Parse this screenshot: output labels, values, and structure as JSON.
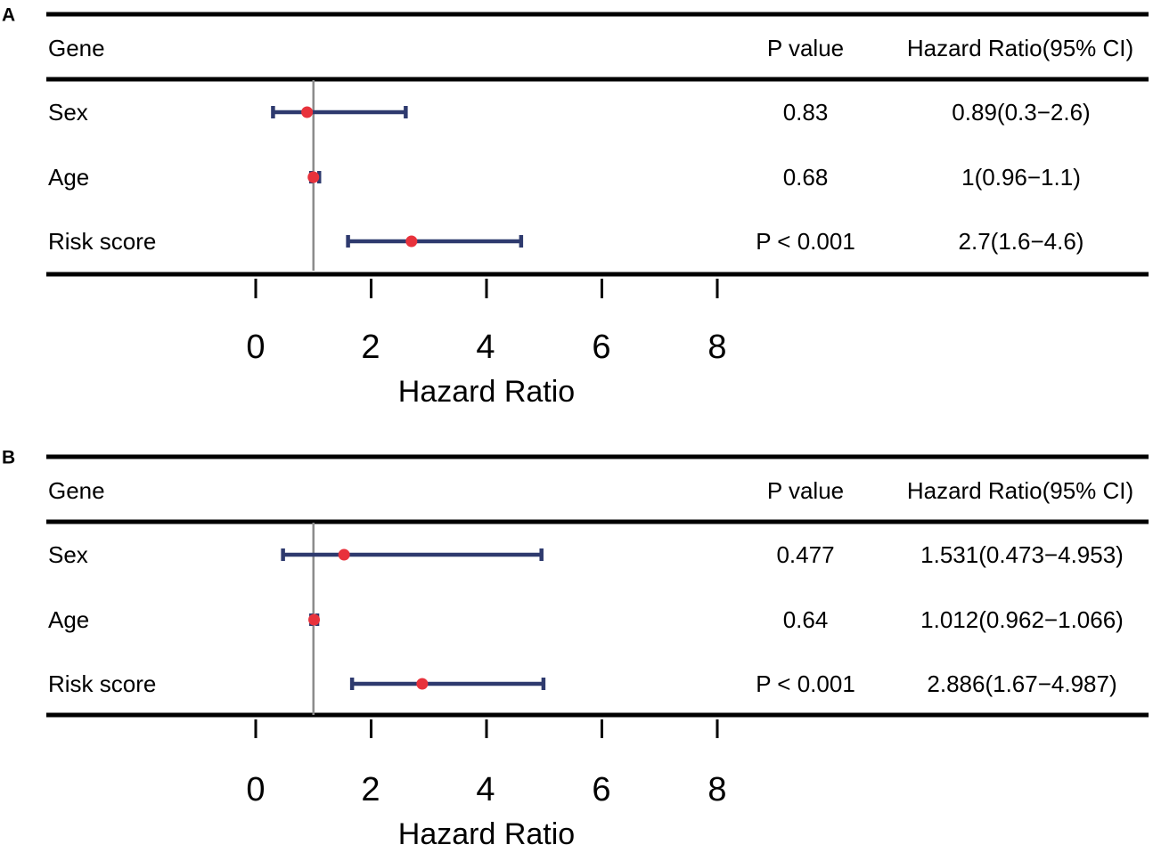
{
  "colors": {
    "bar": "#2e3a6e",
    "point": "#e8323c",
    "refline": "#8c8c8c",
    "rule": "#000000"
  },
  "chart_data": [
    {
      "panel": "A",
      "type": "forest",
      "headers": {
        "gene": "Gene",
        "pvalue": "P value",
        "hr": "Hazard Ratio(95% CI)"
      },
      "rows": [
        {
          "label": "Sex",
          "hr": 0.89,
          "low": 0.3,
          "high": 2.6,
          "pvalue": "0.83",
          "hr_text": "0.89(0.3−2.6)"
        },
        {
          "label": "Age",
          "hr": 1.0,
          "low": 0.96,
          "high": 1.1,
          "pvalue": "0.68",
          "hr_text": "1(0.96−1.1)"
        },
        {
          "label": "Risk score",
          "hr": 2.7,
          "low": 1.6,
          "high": 4.6,
          "pvalue": "P < 0.001",
          "hr_text": "2.7(1.6−4.6)"
        }
      ],
      "reference_value": 1,
      "xlabel": "Hazard Ratio",
      "xticks": [
        0,
        2,
        4,
        6,
        8
      ],
      "xlim": [
        0,
        8
      ]
    },
    {
      "panel": "B",
      "type": "forest",
      "headers": {
        "gene": "Gene",
        "pvalue": "P value",
        "hr": "Hazard Ratio(95% CI)"
      },
      "rows": [
        {
          "label": "Sex",
          "hr": 1.531,
          "low": 0.473,
          "high": 4.953,
          "pvalue": "0.477",
          "hr_text": "1.531(0.473−4.953)"
        },
        {
          "label": "Age",
          "hr": 1.012,
          "low": 0.962,
          "high": 1.066,
          "pvalue": "0.64",
          "hr_text": "1.012(0.962−1.066)"
        },
        {
          "label": "Risk score",
          "hr": 2.886,
          "low": 1.67,
          "high": 4.987,
          "pvalue": "P < 0.001",
          "hr_text": "2.886(1.67−4.987)"
        }
      ],
      "reference_value": 1,
      "xlabel": "Hazard Ratio",
      "xticks": [
        0,
        2,
        4,
        6,
        8
      ],
      "xlim": [
        0,
        8
      ]
    }
  ]
}
